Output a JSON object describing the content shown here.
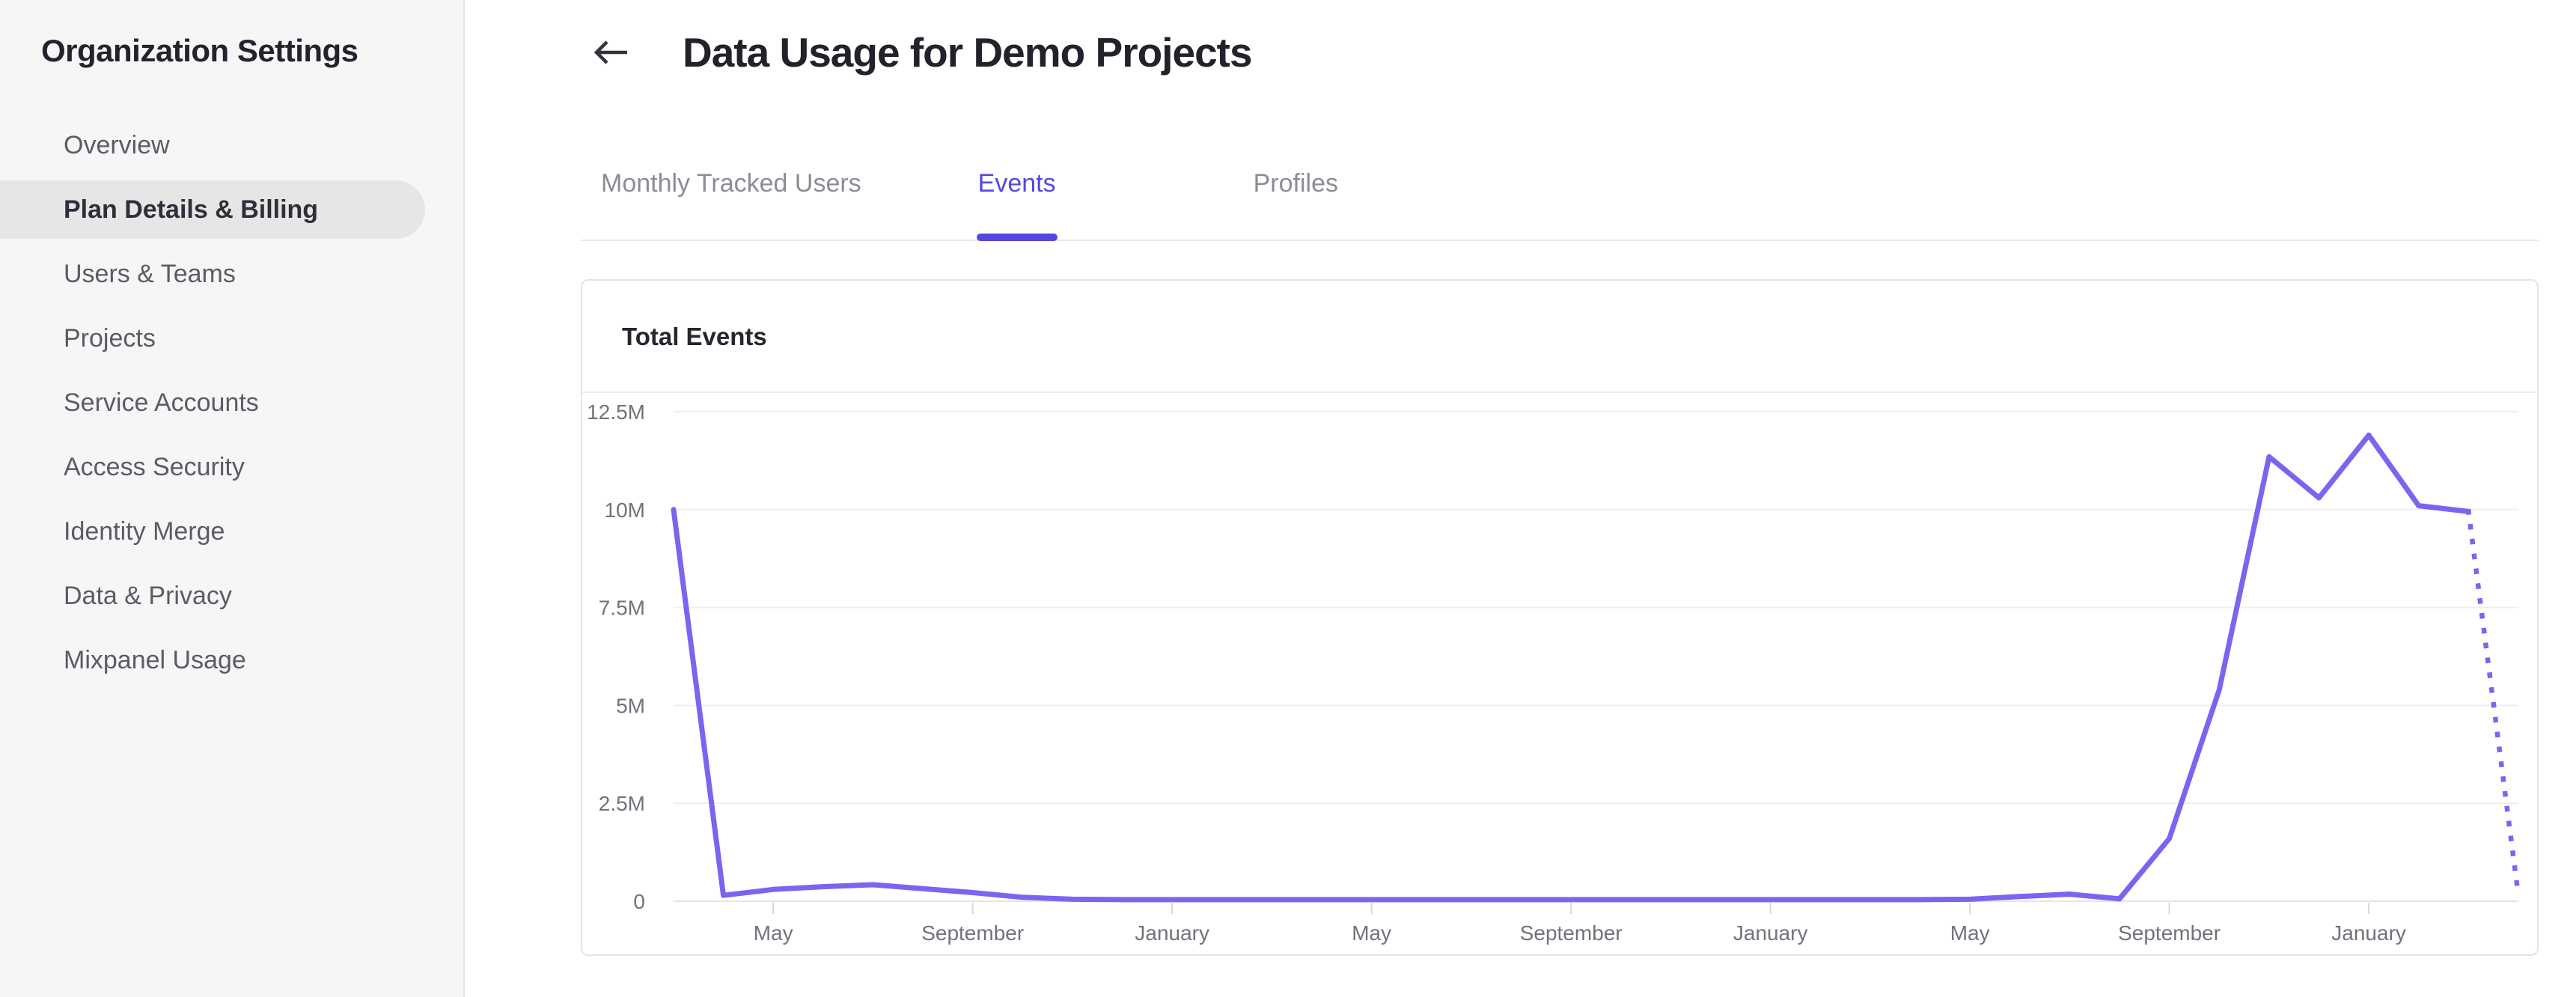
{
  "colors": {
    "accent": "#5447dd",
    "chart_line": "#7d64f0",
    "active_pill_bg": "#e6e6e7",
    "grid_line": "#efeff2",
    "zero_line": "#e5e5e9",
    "tick": "#d7d7dc",
    "axis_text": "#72727c"
  },
  "sidebar": {
    "title": "Organization Settings",
    "items": [
      {
        "label": "Overview",
        "active": false
      },
      {
        "label": "Plan Details & Billing",
        "active": true
      },
      {
        "label": "Users & Teams",
        "active": false
      },
      {
        "label": "Projects",
        "active": false
      },
      {
        "label": "Service Accounts",
        "active": false
      },
      {
        "label": "Access Security",
        "active": false
      },
      {
        "label": "Identity Merge",
        "active": false
      },
      {
        "label": "Data & Privacy",
        "active": false
      },
      {
        "label": "Mixpanel Usage",
        "active": false
      }
    ]
  },
  "header": {
    "back_icon": "arrow-left",
    "title": "Data Usage for Demo Projects"
  },
  "tabs": [
    {
      "label": "Monthly Tracked Users",
      "active": false
    },
    {
      "label": "Events",
      "active": true
    },
    {
      "label": "Profiles",
      "active": false
    }
  ],
  "card": {
    "title": "Total Events"
  },
  "chart_data": {
    "type": "line",
    "title": "Total Events",
    "series_name": "Total Events",
    "unit": "millions of events",
    "ylim": [
      0,
      12.5
    ],
    "grid": true,
    "legend": "none",
    "y_axis": [
      {
        "value": 12.5,
        "label": "12.5M"
      },
      {
        "value": 10,
        "label": "10M"
      },
      {
        "value": 7.5,
        "label": "7.5M"
      },
      {
        "value": 5,
        "label": "5M"
      },
      {
        "value": 2.5,
        "label": "2.5M"
      },
      {
        "value": 0,
        "label": "0"
      }
    ],
    "x_ticks": [
      {
        "index": 2,
        "label": "May"
      },
      {
        "index": 6,
        "label": "September"
      },
      {
        "index": 10,
        "label": "January"
      },
      {
        "index": 14,
        "label": "May"
      },
      {
        "index": 18,
        "label": "September"
      },
      {
        "index": 22,
        "label": "January"
      },
      {
        "index": 26,
        "label": "May"
      },
      {
        "index": 30,
        "label": "September"
      },
      {
        "index": 34,
        "label": "January"
      }
    ],
    "x_interval": "monthly",
    "values_millions": [
      10,
      0.15,
      0.3,
      0.37,
      0.42,
      0.32,
      0.22,
      0.1,
      0.05,
      0.04,
      0.04,
      0.04,
      0.04,
      0.04,
      0.04,
      0.04,
      0.04,
      0.04,
      0.04,
      0.04,
      0.04,
      0.04,
      0.04,
      0.04,
      0.04,
      0.04,
      0.05,
      0.12,
      0.18,
      0.06,
      1.6,
      5.4,
      11.35,
      10.3,
      11.9,
      10.1,
      9.95,
      0.15
    ],
    "solid_point_count": 37,
    "projection_dotted": true
  }
}
